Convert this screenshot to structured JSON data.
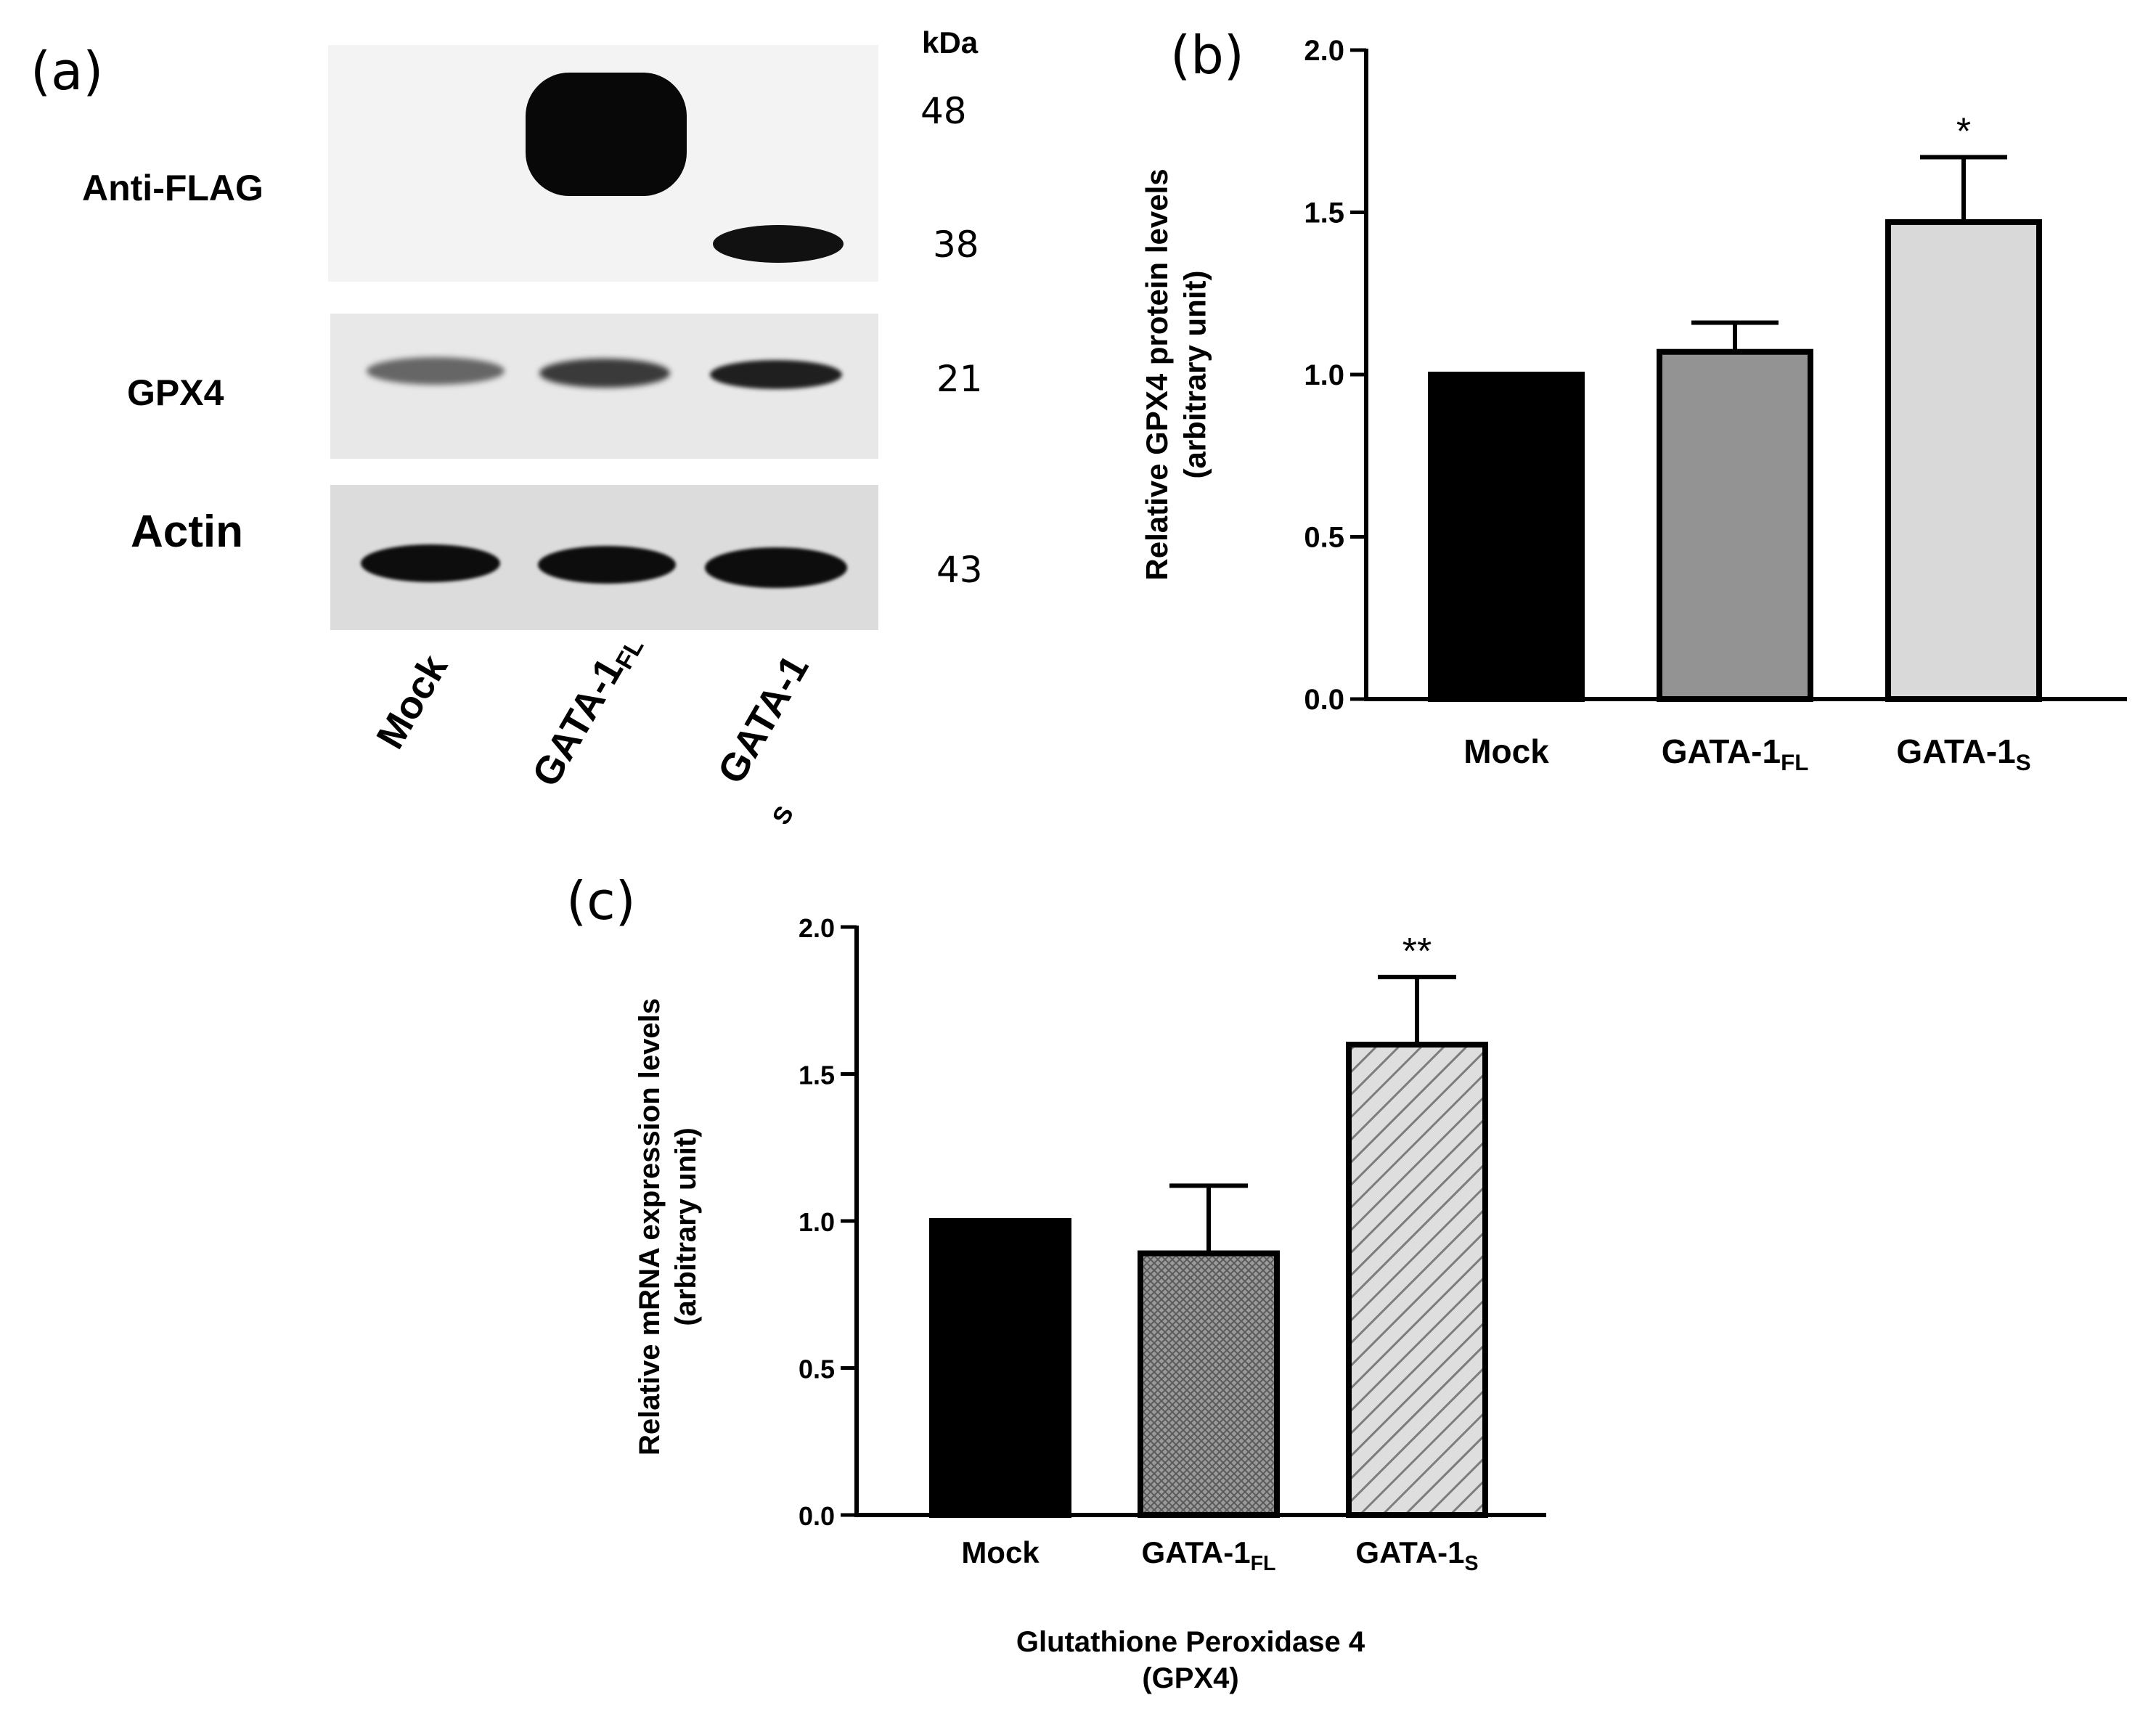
{
  "panels": {
    "a": "(a)",
    "b": "(b)",
    "c": "(c)"
  },
  "blot": {
    "kda_label": "kDa",
    "rows": [
      "Anti-FLAG",
      "GPX4",
      "Actin"
    ],
    "markers": [
      "48",
      "38",
      "21",
      "43"
    ],
    "lanes": [
      {
        "main": "Mock",
        "sub": ""
      },
      {
        "main": "GATA-1",
        "sub": "FL"
      },
      {
        "main": "GATA-1",
        "sub": ""
      }
    ],
    "stray_sub": "S"
  },
  "chart_data": [
    {
      "type": "bar",
      "panel": "(b)",
      "categories": [
        "Mock",
        "GATA-1FL",
        "GATA-1S"
      ],
      "category_labels": [
        {
          "main": "Mock",
          "sub": ""
        },
        {
          "main": "GATA-1",
          "sub": "FL"
        },
        {
          "main": "GATA-1",
          "sub": "S"
        }
      ],
      "values": [
        1.0,
        1.07,
        1.47
      ],
      "errors": [
        0,
        0.09,
        0.2
      ],
      "annotations": [
        "",
        "",
        "*"
      ],
      "fills": [
        "#000000",
        "#939393",
        "#d9d9d9"
      ],
      "ylabel": "Relative GPX4 protein levels",
      "ylabel2": "(arbitrary unit)",
      "xlabel": "",
      "xlabel2": "",
      "ylim": [
        0,
        2.0
      ],
      "yticks": [
        "0.0",
        "0.5",
        "1.0",
        "1.5",
        "2.0"
      ],
      "grid": false
    },
    {
      "type": "bar",
      "panel": "(c)",
      "categories": [
        "Mock",
        "GATA-1FL",
        "GATA-1S"
      ],
      "category_labels": [
        {
          "main": "Mock",
          "sub": ""
        },
        {
          "main": "GATA-1",
          "sub": "FL"
        },
        {
          "main": "GATA-1",
          "sub": "S"
        }
      ],
      "values": [
        1.0,
        0.89,
        1.6
      ],
      "errors": [
        0,
        0.23,
        0.23
      ],
      "annotations": [
        "",
        "",
        "**"
      ],
      "fills": [
        "#000000",
        "crosshatch",
        "diagonal-stripes"
      ],
      "ylabel": "Relative mRNA expression levels",
      "ylabel2": "(arbitrary unit)",
      "xlabel": "Glutathione Peroxidase 4",
      "xlabel2": "(GPX4)",
      "ylim": [
        0,
        2.0
      ],
      "yticks": [
        "0.0",
        "0.5",
        "1.0",
        "1.5",
        "2.0"
      ],
      "grid": false
    }
  ]
}
